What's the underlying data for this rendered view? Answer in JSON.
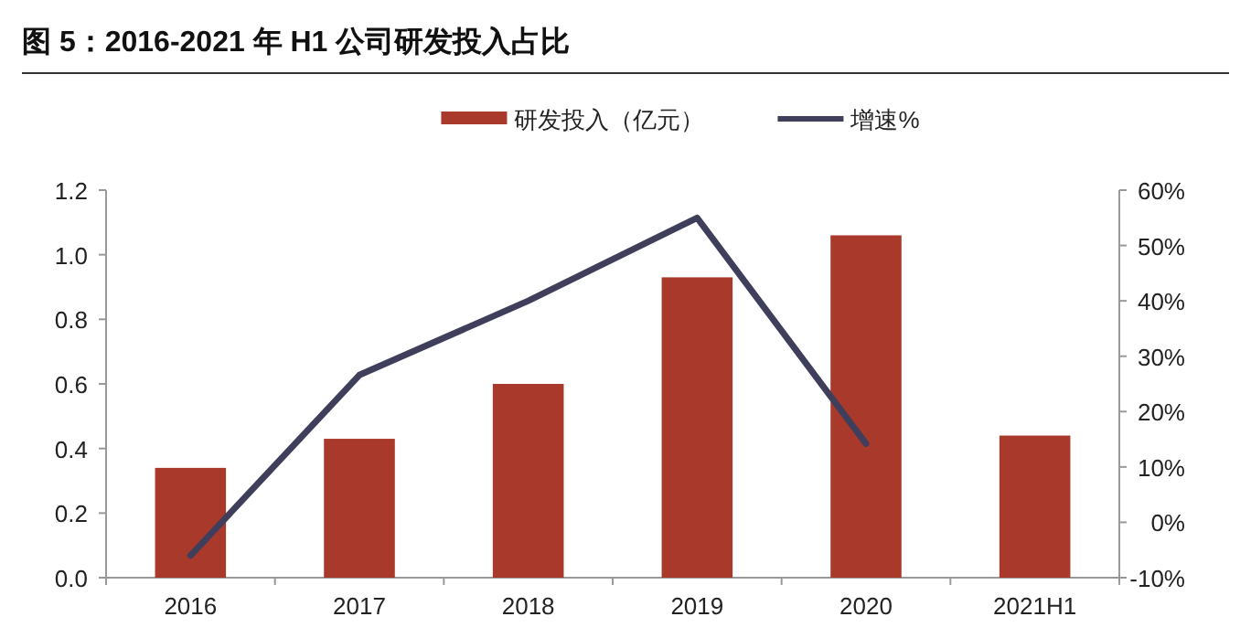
{
  "chart_data": {
    "type": "bar",
    "title": "图 5：2016-2021 年 H1 公司研发投入占比",
    "categories": [
      "2016",
      "2017",
      "2018",
      "2019",
      "2020",
      "2021H1"
    ],
    "series": [
      {
        "name": "研发投入（亿元）",
        "color": "#a93a2b",
        "values": [
          0.34,
          0.43,
          0.6,
          0.93,
          1.06,
          0.44
        ]
      },
      {
        "name": "增速%",
        "type": "line",
        "axis": "y2",
        "color": "#3f3f5c",
        "values": [
          -6,
          26.6,
          40,
          55,
          14.2,
          null
        ]
      }
    ],
    "ylim": [
      0,
      1.2
    ],
    "yticks": [
      {
        "value": 0,
        "label": "0.0"
      },
      {
        "value": 0.2,
        "label": "0.2"
      },
      {
        "value": 0.4,
        "label": "0.4"
      },
      {
        "value": 0.6,
        "label": "0.6"
      },
      {
        "value": 0.8,
        "label": "0.8"
      },
      {
        "value": 1.0,
        "label": "1.0"
      },
      {
        "value": 1.2,
        "label": "1.2"
      }
    ],
    "y2lim": [
      -10,
      60
    ],
    "y2ticks": [
      {
        "value": -10,
        "label": "-10%"
      },
      {
        "value": 0,
        "label": "0%"
      },
      {
        "value": 10,
        "label": "10%"
      },
      {
        "value": 20,
        "label": "20%"
      },
      {
        "value": 30,
        "label": "30%"
      },
      {
        "value": 40,
        "label": "40%"
      },
      {
        "value": 50,
        "label": "50%"
      },
      {
        "value": 60,
        "label": "60%"
      }
    ],
    "grid": false,
    "legend": "top",
    "marker": "none",
    "line_style": "solid"
  }
}
